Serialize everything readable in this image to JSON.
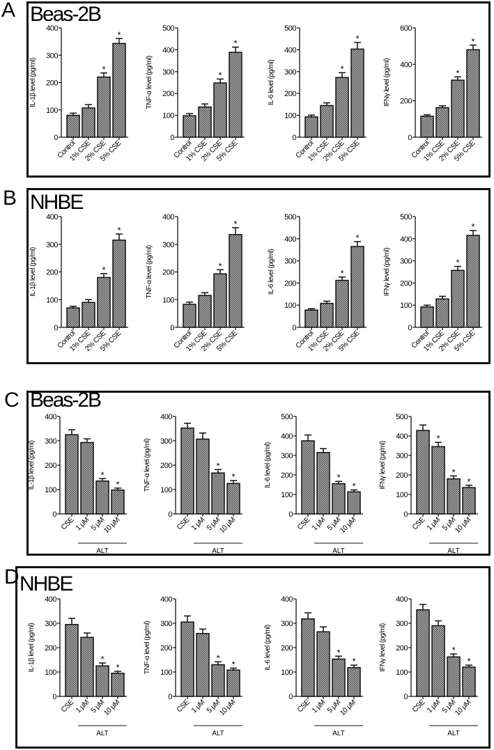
{
  "chart_data": [
    {
      "panel": "A",
      "cell_line": "Beas-2B",
      "type": "bar",
      "categories": [
        "Control",
        "1% CSE",
        "2% CSE",
        "5% CSE"
      ],
      "charts": [
        {
          "ylabel": "IL-1β level (pg/ml)",
          "ylim": [
            0,
            400
          ],
          "ticks": [
            0,
            100,
            200,
            300,
            400
          ],
          "values": [
            80,
            107,
            220,
            343
          ],
          "errors": [
            8,
            12,
            15,
            18
          ],
          "significant": [
            false,
            false,
            true,
            true
          ]
        },
        {
          "ylabel": "TNF-α level (pg/ml)",
          "ylim": [
            0,
            500
          ],
          "ticks": [
            0,
            100,
            200,
            300,
            400,
            500
          ],
          "values": [
            98,
            138,
            248,
            388
          ],
          "errors": [
            10,
            14,
            18,
            24
          ],
          "significant": [
            false,
            false,
            true,
            true
          ]
        },
        {
          "ylabel": "IL-6 level (pg/ml)",
          "ylim": [
            0,
            500
          ],
          "ticks": [
            0,
            100,
            200,
            300,
            400,
            500
          ],
          "values": [
            93,
            145,
            273,
            403
          ],
          "errors": [
            8,
            12,
            22,
            30
          ],
          "significant": [
            false,
            false,
            true,
            true
          ]
        },
        {
          "ylabel": "IFNγ level (pg/ml)",
          "ylim": [
            0,
            600
          ],
          "ticks": [
            0,
            200,
            400,
            600
          ],
          "values": [
            115,
            162,
            313,
            480
          ],
          "errors": [
            8,
            10,
            18,
            25
          ],
          "significant": [
            false,
            false,
            true,
            true
          ]
        }
      ]
    },
    {
      "panel": "B",
      "cell_line": "NHBE",
      "type": "bar",
      "categories": [
        "Control",
        "1% CSE",
        "2% CSE",
        "5% CSE"
      ],
      "charts": [
        {
          "ylabel": "IL-1β level (pg/ml)",
          "ylim": [
            0,
            400
          ],
          "ticks": [
            0,
            100,
            200,
            300,
            400
          ],
          "values": [
            70,
            90,
            180,
            315
          ],
          "errors": [
            6,
            10,
            14,
            22
          ],
          "significant": [
            false,
            false,
            true,
            true
          ]
        },
        {
          "ylabel": "TNF-α level (pg/ml)",
          "ylim": [
            0,
            400
          ],
          "ticks": [
            0,
            100,
            200,
            300,
            400
          ],
          "values": [
            83,
            115,
            193,
            335
          ],
          "errors": [
            8,
            10,
            15,
            25
          ],
          "significant": [
            false,
            false,
            true,
            true
          ]
        },
        {
          "ylabel": "IL-6 level (pg/ml)",
          "ylim": [
            0,
            500
          ],
          "ticks": [
            0,
            100,
            200,
            300,
            400,
            500
          ],
          "values": [
            78,
            108,
            212,
            365
          ],
          "errors": [
            6,
            10,
            15,
            22
          ],
          "significant": [
            false,
            false,
            true,
            true
          ]
        },
        {
          "ylabel": "IFNγ level (pg/ml)",
          "ylim": [
            0,
            500
          ],
          "ticks": [
            0,
            100,
            200,
            300,
            400,
            500
          ],
          "values": [
            92,
            128,
            257,
            415
          ],
          "errors": [
            8,
            12,
            18,
            22
          ],
          "significant": [
            false,
            false,
            true,
            true
          ]
        }
      ]
    },
    {
      "panel": "C",
      "cell_line": "Beas-2B",
      "type": "bar",
      "categories": [
        "CSE",
        "1 μM",
        "5 μM",
        "10 μM"
      ],
      "group_label": "ALT",
      "charts": [
        {
          "ylabel": "IL-1β level (pg/ml)",
          "ylim": [
            0,
            400
          ],
          "ticks": [
            0,
            100,
            200,
            300,
            400
          ],
          "values": [
            325,
            293,
            135,
            98
          ],
          "errors": [
            20,
            15,
            10,
            8
          ],
          "significant": [
            false,
            false,
            true,
            true
          ]
        },
        {
          "ylabel": "TNF-α level (pg/ml)",
          "ylim": [
            0,
            400
          ],
          "ticks": [
            0,
            100,
            200,
            300,
            400
          ],
          "values": [
            352,
            307,
            168,
            125
          ],
          "errors": [
            20,
            25,
            14,
            12
          ],
          "significant": [
            false,
            false,
            true,
            true
          ]
        },
        {
          "ylabel": "IL-6 level (pg/ml)",
          "ylim": [
            0,
            500
          ],
          "ticks": [
            0,
            100,
            200,
            300,
            400,
            500
          ],
          "values": [
            375,
            315,
            155,
            113
          ],
          "errors": [
            30,
            20,
            12,
            10
          ],
          "significant": [
            false,
            false,
            true,
            true
          ]
        },
        {
          "ylabel": "IFNγ level (pg/ml)",
          "ylim": [
            0,
            500
          ],
          "ticks": [
            0,
            100,
            200,
            300,
            400,
            500
          ],
          "values": [
            428,
            345,
            180,
            135
          ],
          "errors": [
            28,
            22,
            15,
            12
          ],
          "significant": [
            false,
            true,
            true,
            true
          ]
        }
      ]
    },
    {
      "panel": "D",
      "cell_line": "NHBE",
      "type": "bar",
      "categories": [
        "CSE",
        "1 μM",
        "5 μM",
        "10 μM"
      ],
      "group_label": "ALT",
      "charts": [
        {
          "ylabel": "IL-1β level (pg/ml)",
          "ylim": [
            0,
            400
          ],
          "ticks": [
            0,
            100,
            200,
            300,
            400
          ],
          "values": [
            295,
            242,
            125,
            95
          ],
          "errors": [
            25,
            18,
            12,
            8
          ],
          "significant": [
            false,
            false,
            true,
            true
          ]
        },
        {
          "ylabel": "TNF-α level (pg/ml)",
          "ylim": [
            0,
            400
          ],
          "ticks": [
            0,
            100,
            200,
            300,
            400
          ],
          "values": [
            305,
            258,
            130,
            108
          ],
          "errors": [
            25,
            18,
            12,
            8
          ],
          "significant": [
            false,
            false,
            true,
            true
          ]
        },
        {
          "ylabel": "IL-6 level (pg/ml)",
          "ylim": [
            0,
            400
          ],
          "ticks": [
            0,
            100,
            200,
            300,
            400
          ],
          "values": [
            318,
            265,
            153,
            118
          ],
          "errors": [
            25,
            20,
            12,
            10
          ],
          "significant": [
            false,
            false,
            true,
            true
          ]
        },
        {
          "ylabel": "IFNγ level (pg/ml)",
          "ylim": [
            0,
            400
          ],
          "ticks": [
            0,
            100,
            200,
            300,
            400
          ],
          "values": [
            355,
            290,
            162,
            120
          ],
          "errors": [
            22,
            20,
            12,
            8
          ],
          "significant": [
            false,
            false,
            true,
            true
          ]
        }
      ]
    }
  ],
  "significance_marker": "*",
  "colors": {
    "bar_fill": "#8a8a8a",
    "bar_dark": "#555555",
    "stroke": "#111111"
  }
}
